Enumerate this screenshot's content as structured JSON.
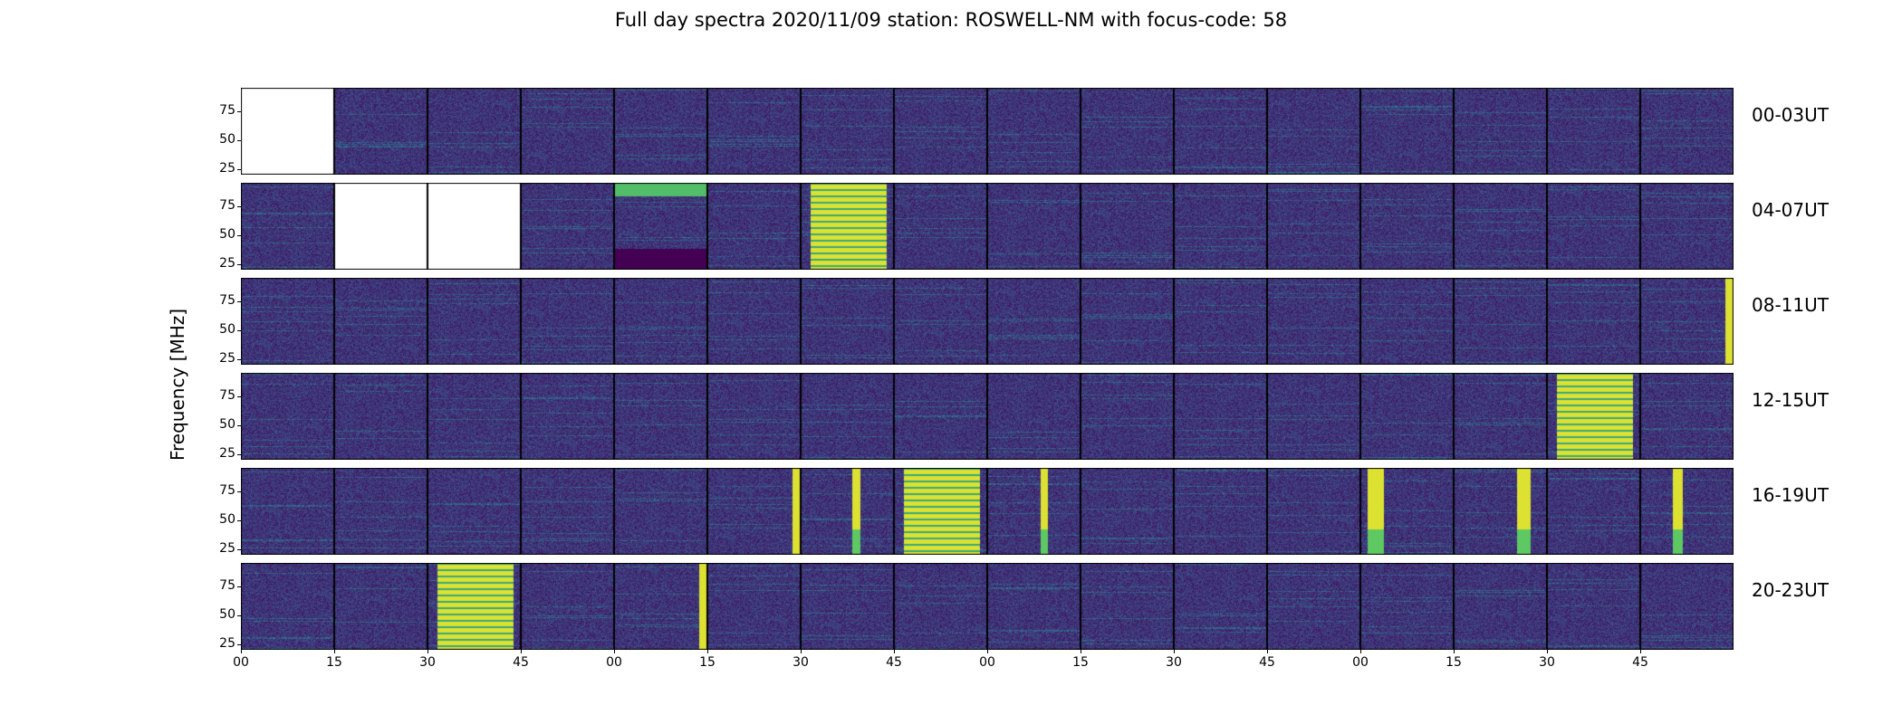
{
  "title": "Full day spectra 2020/11/09 station: ROSWELL-NM with focus-code: 58",
  "ylabel": "Frequency [MHz]",
  "row_labels": [
    "00-03UT",
    "04-07UT",
    "08-11UT",
    "12-15UT",
    "16-19UT",
    "20-23UT"
  ],
  "yticks": [
    "75",
    "50",
    "25"
  ],
  "xticks": [
    "00",
    "15",
    "30",
    "45",
    "00",
    "15",
    "30",
    "45",
    "00",
    "15",
    "30",
    "45",
    "00",
    "15",
    "30",
    "45"
  ],
  "colors": {
    "bg": "#440154",
    "mid": "#3b528b",
    "teal": "#21918c",
    "green": "#5ec962",
    "yellow": "#fde725"
  },
  "chart_data": {
    "type": "heatmap",
    "colormap": "viridis",
    "rows": 6,
    "panels_per_row": 16,
    "panel_minutes": 15,
    "yrange_mhz": [
      20,
      95
    ],
    "empty_panels": [
      [
        0,
        0
      ],
      [
        1,
        1
      ],
      [
        1,
        2
      ]
    ],
    "strong_panels": [
      {
        "row": 1,
        "panel": 4,
        "pattern": "green-top-band"
      },
      {
        "row": 1,
        "panel": 6,
        "pattern": "yellow-block"
      },
      {
        "row": 2,
        "panel": 15,
        "pattern": "yellow-edge"
      },
      {
        "row": 3,
        "panel": 14,
        "pattern": "yellow-block"
      },
      {
        "row": 4,
        "panel": 5,
        "pattern": "yellow-edge"
      },
      {
        "row": 4,
        "panel": 6,
        "pattern": "yellow-stripe"
      },
      {
        "row": 4,
        "panel": 7,
        "pattern": "yellow-block"
      },
      {
        "row": 4,
        "panel": 8,
        "pattern": "yellow-stripe"
      },
      {
        "row": 4,
        "panel": 12,
        "pattern": "yellow-stripe"
      },
      {
        "row": 4,
        "panel": 13,
        "pattern": "yellow-stripe"
      },
      {
        "row": 4,
        "panel": 15,
        "pattern": "yellow-stripe"
      },
      {
        "row": 5,
        "panel": 2,
        "pattern": "yellow-block"
      },
      {
        "row": 5,
        "panel": 4,
        "pattern": "yellow-edge"
      }
    ]
  }
}
